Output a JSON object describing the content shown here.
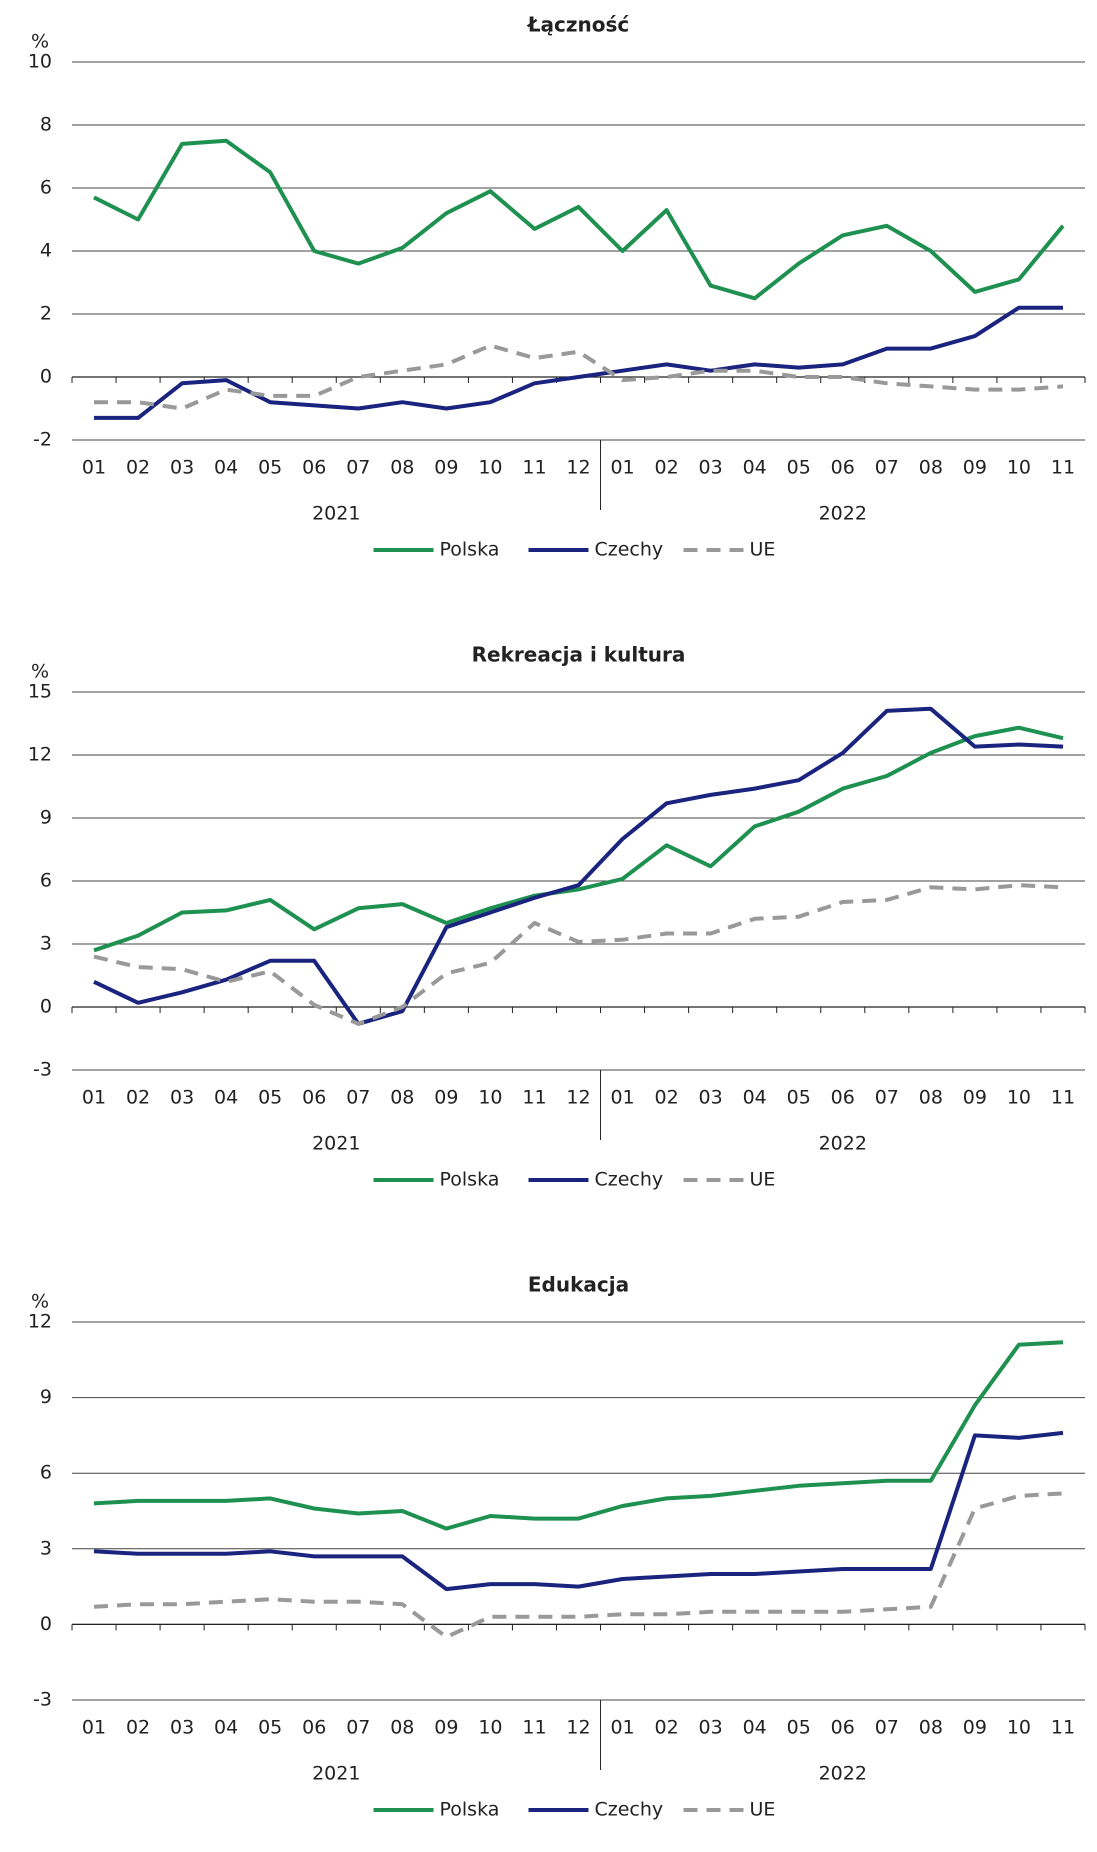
{
  "chart_data": [
    {
      "type": "line",
      "title": "Łączność",
      "ylabel": "%",
      "categories": [
        "01",
        "02",
        "03",
        "04",
        "05",
        "06",
        "07",
        "08",
        "09",
        "10",
        "11",
        "12",
        "01",
        "02",
        "03",
        "04",
        "05",
        "06",
        "07",
        "08",
        "09",
        "10",
        "11"
      ],
      "year_labels": [
        "2021",
        "2022"
      ],
      "ylim": [
        -2,
        10
      ],
      "yticks": [
        -2,
        0,
        2,
        4,
        6,
        8,
        10
      ],
      "grid": true,
      "series": [
        {
          "name": "Polska",
          "color": "#1e9150",
          "dashed": false,
          "values": [
            5.7,
            5.0,
            7.4,
            7.5,
            6.5,
            4.0,
            3.6,
            4.1,
            5.2,
            5.9,
            4.7,
            5.4,
            4.0,
            5.3,
            2.9,
            2.5,
            3.6,
            4.5,
            4.8,
            4.0,
            2.7,
            3.1,
            4.8
          ]
        },
        {
          "name": "Czechy",
          "color": "#1a237e",
          "dashed": false,
          "values": [
            -1.3,
            -1.3,
            -0.2,
            -0.1,
            -0.8,
            -0.9,
            -1.0,
            -0.8,
            -1.0,
            -0.8,
            -0.2,
            0.0,
            0.2,
            0.4,
            0.2,
            0.4,
            0.3,
            0.4,
            0.9,
            0.9,
            1.3,
            2.2,
            2.2
          ]
        },
        {
          "name": "UE",
          "color": "#999999",
          "dashed": true,
          "values": [
            -0.8,
            -0.8,
            -1.0,
            -0.4,
            -0.6,
            -0.6,
            0.0,
            0.2,
            0.4,
            1.0,
            0.6,
            0.8,
            -0.1,
            0.0,
            0.2,
            0.2,
            0.0,
            0.0,
            -0.2,
            -0.3,
            -0.4,
            -0.4,
            -0.3
          ]
        }
      ]
    },
    {
      "type": "line",
      "title": "Rekreacja i kultura",
      "ylabel": "%",
      "categories": [
        "01",
        "02",
        "03",
        "04",
        "05",
        "06",
        "07",
        "08",
        "09",
        "10",
        "11",
        "12",
        "01",
        "02",
        "03",
        "04",
        "05",
        "06",
        "07",
        "08",
        "09",
        "10",
        "11"
      ],
      "year_labels": [
        "2021",
        "2022"
      ],
      "ylim": [
        -3,
        15
      ],
      "yticks": [
        -3,
        0,
        3,
        6,
        9,
        12,
        15
      ],
      "grid": true,
      "series": [
        {
          "name": "Polska",
          "color": "#1e9150",
          "dashed": false,
          "values": [
            2.7,
            3.4,
            4.5,
            4.6,
            5.1,
            3.7,
            4.7,
            4.9,
            4.0,
            4.7,
            5.3,
            5.6,
            6.1,
            7.7,
            6.7,
            8.6,
            9.3,
            10.4,
            11.0,
            12.1,
            12.9,
            13.3,
            12.8
          ]
        },
        {
          "name": "Czechy",
          "color": "#1a237e",
          "dashed": false,
          "values": [
            1.2,
            0.2,
            0.7,
            1.3,
            2.2,
            2.2,
            -0.8,
            -0.2,
            3.8,
            4.5,
            5.2,
            5.8,
            8.0,
            9.7,
            10.1,
            10.4,
            10.8,
            12.1,
            14.1,
            14.2,
            12.4,
            12.5,
            12.4
          ]
        },
        {
          "name": "UE",
          "color": "#999999",
          "dashed": true,
          "values": [
            2.4,
            1.9,
            1.8,
            1.2,
            1.7,
            0.1,
            -0.8,
            0.0,
            1.6,
            2.1,
            4.0,
            3.1,
            3.2,
            3.5,
            3.5,
            4.2,
            4.3,
            5.0,
            5.1,
            5.7,
            5.6,
            5.8,
            5.7
          ]
        }
      ]
    },
    {
      "type": "line",
      "title": "Edukacja",
      "ylabel": "%",
      "categories": [
        "01",
        "02",
        "03",
        "04",
        "05",
        "06",
        "07",
        "08",
        "09",
        "10",
        "11",
        "12",
        "01",
        "02",
        "03",
        "04",
        "05",
        "06",
        "07",
        "08",
        "09",
        "10",
        "11"
      ],
      "year_labels": [
        "2021",
        "2022"
      ],
      "ylim": [
        -3,
        12
      ],
      "yticks": [
        -3,
        0,
        3,
        6,
        9,
        12
      ],
      "grid": true,
      "series": [
        {
          "name": "Polska",
          "color": "#1e9150",
          "dashed": false,
          "values": [
            4.8,
            4.9,
            4.9,
            4.9,
            5.0,
            4.6,
            4.4,
            4.5,
            3.8,
            4.3,
            4.2,
            4.2,
            4.7,
            5.0,
            5.1,
            5.3,
            5.5,
            5.6,
            5.7,
            5.7,
            8.7,
            11.1,
            11.2
          ]
        },
        {
          "name": "Czechy",
          "color": "#1a237e",
          "dashed": false,
          "values": [
            2.9,
            2.8,
            2.8,
            2.8,
            2.9,
            2.7,
            2.7,
            2.7,
            1.4,
            1.6,
            1.6,
            1.5,
            1.8,
            1.9,
            2.0,
            2.0,
            2.1,
            2.2,
            2.2,
            2.2,
            7.5,
            7.4,
            7.6
          ]
        },
        {
          "name": "UE",
          "color": "#999999",
          "dashed": true,
          "values": [
            0.7,
            0.8,
            0.8,
            0.9,
            1.0,
            0.9,
            0.9,
            0.8,
            -0.5,
            0.3,
            0.3,
            0.3,
            0.4,
            0.4,
            0.5,
            0.5,
            0.5,
            0.5,
            0.6,
            0.7,
            4.6,
            5.1,
            5.2
          ]
        }
      ]
    }
  ]
}
